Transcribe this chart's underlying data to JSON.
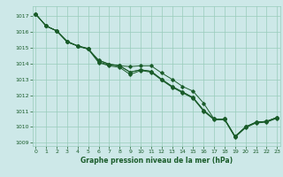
{
  "title": "Graphe pression niveau de la mer (hPa)",
  "bg_color": "#cde8e8",
  "grid_color": "#99ccbb",
  "line_color": "#1a5c2a",
  "xlim": [
    -0.3,
    23.3
  ],
  "ylim": [
    1008.8,
    1017.6
  ],
  "yticks": [
    1009,
    1010,
    1011,
    1012,
    1013,
    1014,
    1015,
    1016,
    1017
  ],
  "xticks": [
    0,
    1,
    2,
    3,
    4,
    5,
    6,
    7,
    8,
    9,
    10,
    11,
    12,
    13,
    14,
    15,
    16,
    17,
    18,
    19,
    20,
    21,
    22,
    23
  ],
  "series": [
    [
      1017.1,
      1016.35,
      1016.05,
      1015.4,
      1015.1,
      1014.95,
      1014.1,
      1013.9,
      1013.85,
      1013.8,
      1013.85,
      1013.85,
      1013.4,
      1013.0,
      1012.55,
      1012.25,
      1011.5,
      1010.5,
      1010.5,
      1009.4,
      1010.0,
      1010.3,
      1010.35,
      1010.6
    ],
    [
      1017.1,
      1016.35,
      1016.05,
      1015.35,
      1015.1,
      1014.9,
      1014.05,
      1013.85,
      1013.75,
      1013.3,
      1013.55,
      1013.45,
      1012.95,
      1012.5,
      1012.15,
      1011.8,
      1011.0,
      1010.45,
      1010.45,
      1009.35,
      1009.95,
      1010.25,
      1010.3,
      1010.55
    ],
    [
      1017.1,
      1016.35,
      1016.05,
      1015.35,
      1015.1,
      1014.9,
      1014.2,
      1013.95,
      1013.85,
      1013.45,
      1013.6,
      1013.5,
      1013.0,
      1012.55,
      1012.2,
      1011.85,
      1011.05,
      1010.5,
      1010.5,
      1009.4,
      1010.0,
      1010.3,
      1010.35,
      1010.6
    ],
    [
      1017.1,
      1016.35,
      1016.05,
      1015.35,
      1015.1,
      1014.9,
      1014.2,
      1013.95,
      1013.85,
      1013.45,
      1013.6,
      1013.5,
      1013.0,
      1012.55,
      1012.2,
      1011.85,
      1011.05,
      1010.5,
      1010.5,
      1009.4,
      1010.0,
      1010.3,
      1010.35,
      1010.6
    ]
  ]
}
